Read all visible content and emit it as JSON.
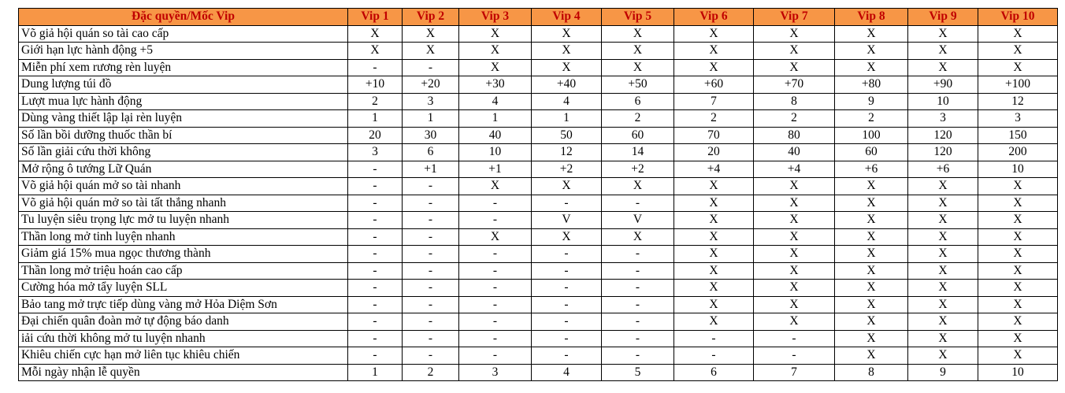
{
  "colors": {
    "header_background": "#f79646",
    "header_text": "#c00000",
    "grid": "#000000"
  },
  "table": {
    "headers": [
      "Đặc quyền/Mốc Vip",
      "Vip 1",
      "Vip 2",
      "Vip 3",
      "Vip 4",
      "Vip 5",
      "Vip 6",
      "Vip 7",
      "Vip 8",
      "Vip 9",
      "Vip 10"
    ],
    "rows": [
      [
        "Võ giả hội quán so tài cao cấp",
        "X",
        "X",
        "X",
        "X",
        "X",
        "X",
        "X",
        "X",
        "X",
        "X"
      ],
      [
        "Giới hạn lực hành động +5",
        "X",
        "X",
        "X",
        "X",
        "X",
        "X",
        "X",
        "X",
        "X",
        "X"
      ],
      [
        "Miễn phí xem rương rèn luyện",
        "-",
        "-",
        "X",
        "X",
        "X",
        "X",
        "X",
        "X",
        "X",
        "X"
      ],
      [
        "Dung lượng túi đồ",
        "+10",
        "+20",
        "+30",
        "+40",
        "+50",
        "+60",
        "+70",
        "+80",
        "+90",
        "+100"
      ],
      [
        "Lượt mua lực hành động",
        "2",
        "3",
        "4",
        "4",
        "6",
        "7",
        "8",
        "9",
        "10",
        "12"
      ],
      [
        "Dùng vàng thiết lập lại rèn luyện",
        "1",
        "1",
        "1",
        "1",
        "2",
        "2",
        "2",
        "2",
        "3",
        "3"
      ],
      [
        "Số lần bồi dưỡng thuốc thần bí",
        "20",
        "30",
        "40",
        "50",
        "60",
        "70",
        "80",
        "100",
        "120",
        "150"
      ],
      [
        "Số lần giải cứu thời không",
        "3",
        "6",
        "10",
        "12",
        "14",
        "20",
        "40",
        "60",
        "120",
        "200"
      ],
      [
        "Mở rộng ô tướng Lữ Quán",
        "-",
        "+1",
        "+1",
        "+2",
        "+2",
        "+4",
        "+4",
        "+6",
        "+6",
        "10"
      ],
      [
        "Võ giả hội quán mở so tài nhanh",
        "-",
        "-",
        "X",
        "X",
        "X",
        "X",
        "X",
        "X",
        "X",
        "X"
      ],
      [
        "Võ giả hội quán mở so tài tất thắng nhanh",
        "-",
        "-",
        "-",
        "-",
        "-",
        "X",
        "X",
        "X",
        "X",
        "X"
      ],
      [
        "Tu luyện siêu trọng lực mở tu luyện nhanh",
        "-",
        "-",
        "-",
        "V",
        "V",
        "X",
        "X",
        "X",
        "X",
        "X"
      ],
      [
        "Thần long mở tinh luyện nhanh",
        "-",
        "-",
        "X",
        "X",
        "X",
        "X",
        "X",
        "X",
        "X",
        "X"
      ],
      [
        "Giảm giá 15% mua ngọc thương thành",
        "-",
        "-",
        "-",
        "-",
        "-",
        "X",
        "X",
        "X",
        "X",
        "X"
      ],
      [
        "Thần long mở triệu hoán cao cấp",
        "-",
        "-",
        "-",
        "-",
        "-",
        "X",
        "X",
        "X",
        "X",
        "X"
      ],
      [
        "Cường hóa mở tẩy luyện SLL",
        "-",
        "-",
        "-",
        "-",
        "-",
        "X",
        "X",
        "X",
        "X",
        "X"
      ],
      [
        "Bảo tang mở trực tiếp dùng vàng mở Hỏa Diệm Sơn",
        "-",
        "-",
        "-",
        "-",
        "-",
        "X",
        "X",
        "X",
        "X",
        "X"
      ],
      [
        "Đại chiến quân đoàn mở tự động báo danh",
        "-",
        "-",
        "-",
        "-",
        "-",
        "X",
        "X",
        "X",
        "X",
        "X"
      ],
      [
        "iải cứu thời không mở tu luyện nhanh",
        "-",
        "-",
        "-",
        "-",
        "-",
        "-",
        "-",
        "X",
        "X",
        "X"
      ],
      [
        "Khiêu chiến cực hạn mở liên tục khiêu chiến",
        "-",
        "-",
        "-",
        "-",
        "-",
        "-",
        "-",
        "X",
        "X",
        "X"
      ],
      [
        "Mỗi ngày nhận lễ quyền",
        "1",
        "2",
        "3",
        "4",
        "5",
        "6",
        "7",
        "8",
        "9",
        "10"
      ]
    ]
  }
}
